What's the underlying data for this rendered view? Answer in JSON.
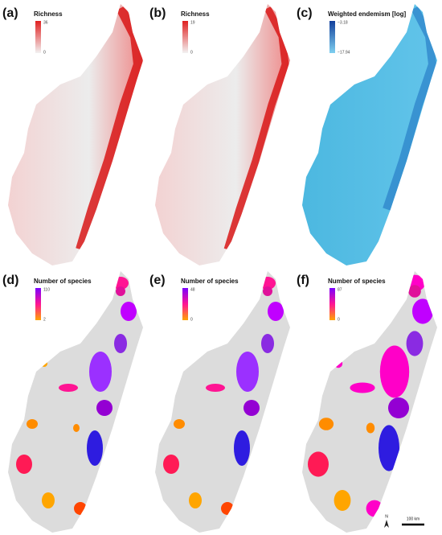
{
  "panels": [
    {
      "label": "(a)",
      "legend_title": "Richness",
      "max": "36",
      "min": "0"
    },
    {
      "label": "(b)",
      "legend_title": "Richness",
      "max": "19",
      "min": "0"
    },
    {
      "label": "(c)",
      "legend_title": "Weighted endemism [log]",
      "max": "−3.18",
      "min": "−17.94"
    },
    {
      "label": "(d)",
      "legend_title": "Number of species",
      "max": "110",
      "min": "2"
    },
    {
      "label": "(e)",
      "legend_title": "Number of species",
      "max": "48",
      "min": "0"
    },
    {
      "label": "(f)",
      "legend_title": "Number of species",
      "max": "87",
      "min": "0"
    }
  ],
  "scale_bar": "100 km",
  "north": "N"
}
